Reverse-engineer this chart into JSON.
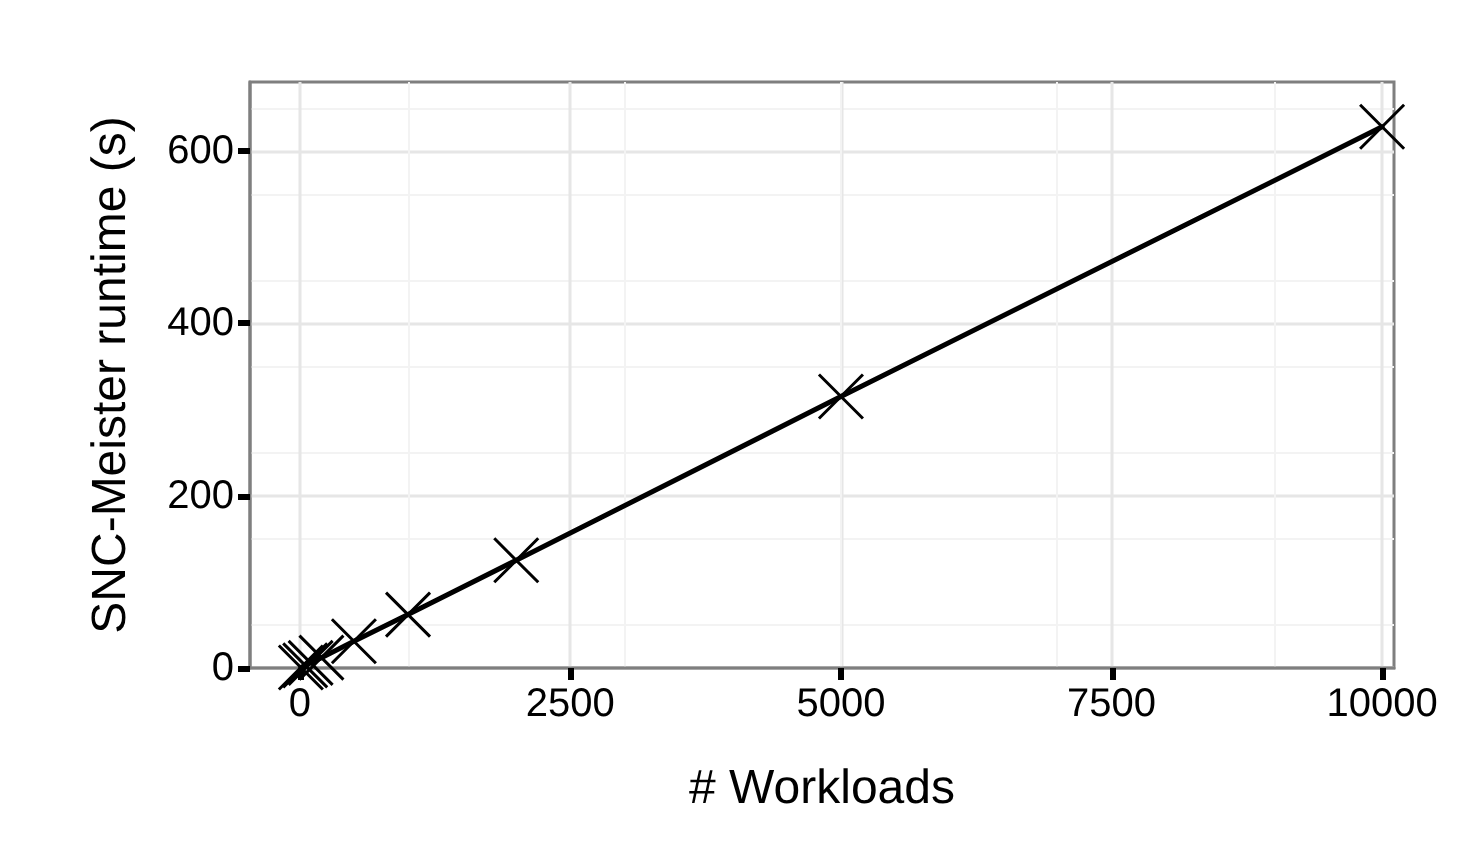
{
  "chart_data": {
    "type": "line",
    "xlabel": "# Workloads",
    "ylabel": "SNC-Meister runtime (s)",
    "x": [
      10,
      50,
      100,
      200,
      500,
      1000,
      2000,
      5000,
      10000
    ],
    "series": [
      {
        "color": "#000000",
        "values": [
          0.6,
          3,
          6,
          12,
          31,
          62,
          125,
          315,
          628
        ]
      }
    ],
    "xlim": [
      -460,
      10110
    ],
    "xticks": [
      0,
      2500,
      5000,
      7500,
      10000
    ],
    "ylim": [
      0,
      680
    ],
    "yticks": [
      0,
      200,
      400,
      600
    ],
    "grid": true,
    "marker": "cross",
    "line_style": "solid"
  }
}
